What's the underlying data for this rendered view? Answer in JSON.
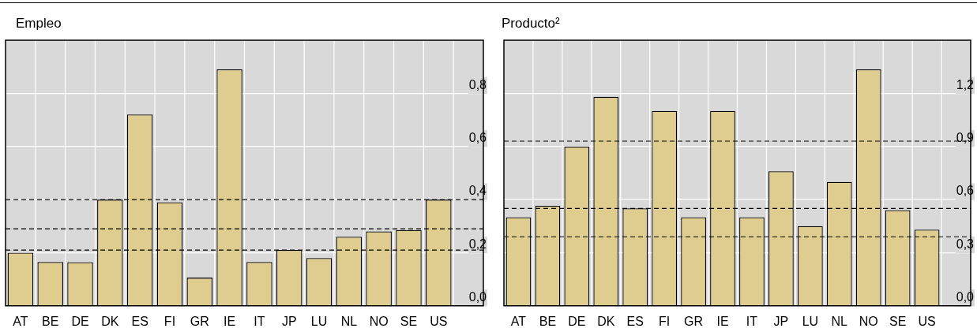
{
  "chart_data": [
    {
      "type": "bar",
      "title": "Empleo",
      "categories": [
        "AT",
        "BE",
        "DE",
        "DK",
        "ES",
        "FI",
        "GR",
        "IE",
        "IT",
        "JP",
        "LU",
        "NL",
        "NO",
        "SE",
        "US"
      ],
      "values": [
        0.2,
        0.165,
        0.164,
        0.4,
        0.72,
        0.39,
        0.106,
        0.89,
        0.165,
        0.21,
        0.18,
        0.26,
        0.28,
        0.285,
        0.4
      ],
      "color": "#dfcc8f",
      "ylim": [
        0,
        1
      ],
      "yticks": [
        {
          "value": 0,
          "label": "0,0"
        },
        {
          "value": 0.2,
          "label": "0,2"
        },
        {
          "value": 0.4,
          "label": "0,4"
        },
        {
          "value": 0.6,
          "label": "0,6"
        },
        {
          "value": 0.8,
          "label": "0,8"
        }
      ],
      "grid": true,
      "ref_lines": [
        {
          "axis": "y",
          "value": 0.4,
          "color": "#000000",
          "line_style": "dashed"
        },
        {
          "axis": "y",
          "value": 0.29,
          "color": "#000000",
          "line_style": "dashed"
        },
        {
          "axis": "y",
          "value": 0.21,
          "color": "#000000",
          "line_style": "dashed"
        }
      ]
    },
    {
      "type": "bar",
      "title": "Producto²",
      "categories": [
        "AT",
        "BE",
        "DE",
        "DK",
        "ES",
        "FI",
        "GR",
        "IE",
        "IT",
        "JP",
        "LU",
        "NL",
        "NO",
        "SE",
        "US"
      ],
      "values": [
        0.5,
        0.565,
        0.9,
        1.18,
        0.55,
        1.1,
        0.5,
        1.1,
        0.5,
        0.76,
        0.45,
        0.7,
        1.335,
        0.54,
        0.43
      ],
      "color": "#dfcc8f",
      "ylim": [
        0,
        1.5
      ],
      "yticks": [
        {
          "value": 0,
          "label": "0,0"
        },
        {
          "value": 0.3,
          "label": "0,3"
        },
        {
          "value": 0.6,
          "label": "0,6"
        },
        {
          "value": 0.9,
          "label": "0,9"
        },
        {
          "value": 1.2,
          "label": "1,2"
        }
      ],
      "grid": true,
      "ref_lines": [
        {
          "axis": "y",
          "value": 0.93,
          "color": "#000000",
          "line_style": "dashed"
        },
        {
          "axis": "y",
          "value": 0.55,
          "color": "#000000",
          "line_style": "dashed"
        },
        {
          "axis": "y",
          "value": 0.39,
          "color": "#000000",
          "line_style": "dashed"
        }
      ]
    }
  ]
}
